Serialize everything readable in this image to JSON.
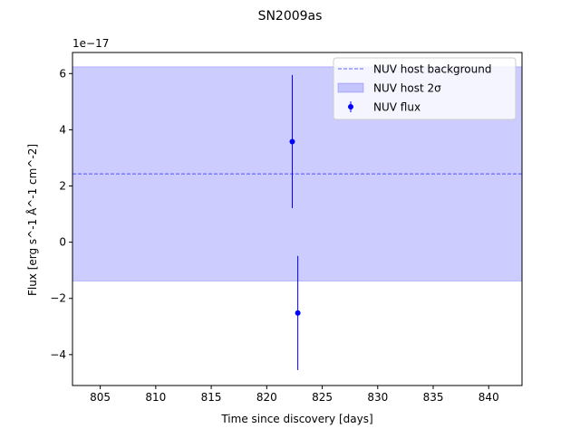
{
  "chart_data": {
    "type": "scatter",
    "title": "SN2009as",
    "xlabel": "Time since discovery [days]",
    "ylabel": "Flux [erg s^-1 Å^-1 cm^-2]",
    "y_offset_text": "1e−17",
    "xlim": [
      802.5,
      843.0
    ],
    "ylim": [
      -5.1,
      6.75
    ],
    "x_ticks": [
      805,
      810,
      815,
      820,
      825,
      830,
      835,
      840
    ],
    "y_ticks": [
      -4,
      -2,
      0,
      2,
      4,
      6
    ],
    "y_tick_labels": [
      "−4",
      "−2",
      "0",
      "2",
      "4",
      "6"
    ],
    "grid": false,
    "legend_position": "top-right",
    "host_background": {
      "name": "NUV host background",
      "value": 2.43,
      "color": "#0000ff"
    },
    "host_band": {
      "name": "NUV host 2σ",
      "low": -1.38,
      "high": 6.24,
      "color": "#0000ff"
    },
    "series": [
      {
        "name": "NUV flux",
        "color": "#0000ff",
        "points": [
          {
            "x": 822.3,
            "y": 3.58,
            "err": 2.37
          },
          {
            "x": 822.8,
            "y": -2.52,
            "err": 2.03
          }
        ]
      }
    ]
  }
}
